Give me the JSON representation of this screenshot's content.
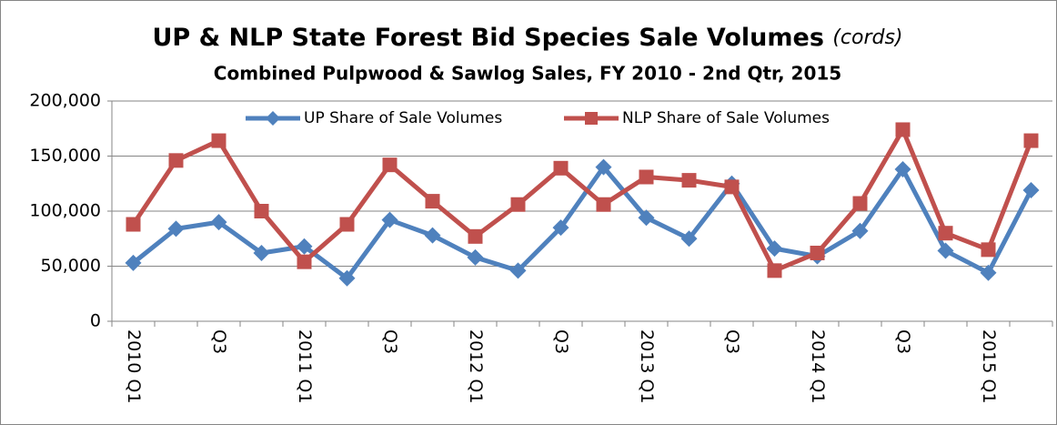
{
  "chart_data": {
    "type": "line",
    "title": "UP & NLP State Forest Bid Species  Sale Volumes",
    "title_unit": "(cords)",
    "subtitle": "Combined Pulpwood & Sawlog Sales, FY 2010 - 2nd Qtr,  2015",
    "categories": [
      "2010 Q1",
      null,
      "Q3",
      null,
      "2011 Q1",
      null,
      "Q3",
      null,
      "2012 Q1",
      null,
      "Q3",
      null,
      "2013 Q1",
      null,
      "Q3",
      null,
      "2014 Q1",
      null,
      "Q3",
      null,
      "2015 Q1",
      null
    ],
    "series": [
      {
        "name": "UP Share of Sale Volumes",
        "color": "#4f81bd",
        "marker": "diamond",
        "values": [
          53000,
          84000,
          90000,
          62000,
          68000,
          39000,
          92000,
          78000,
          58000,
          46000,
          85000,
          140000,
          94000,
          75000,
          125000,
          66000,
          59000,
          82000,
          138000,
          64000,
          44000,
          119000
        ]
      },
      {
        "name": "NLP Share of Sale Volumes",
        "color": "#c0504d",
        "marker": "square",
        "values": [
          88000,
          146000,
          164000,
          100000,
          54000,
          88000,
          142000,
          109000,
          77000,
          106000,
          139000,
          106000,
          131000,
          128000,
          122000,
          46000,
          62000,
          107000,
          174000,
          80000,
          65000,
          164000
        ]
      }
    ],
    "ylim": [
      0,
      200000
    ],
    "yticks": [
      0,
      {
        "value": 50000,
        "label": "50,000"
      },
      {
        "value": 100000,
        "label": "100,000"
      },
      {
        "value": 150000,
        "label": "150,000"
      },
      {
        "value": 200000,
        "label": "200,000"
      }
    ],
    "grid": true
  }
}
